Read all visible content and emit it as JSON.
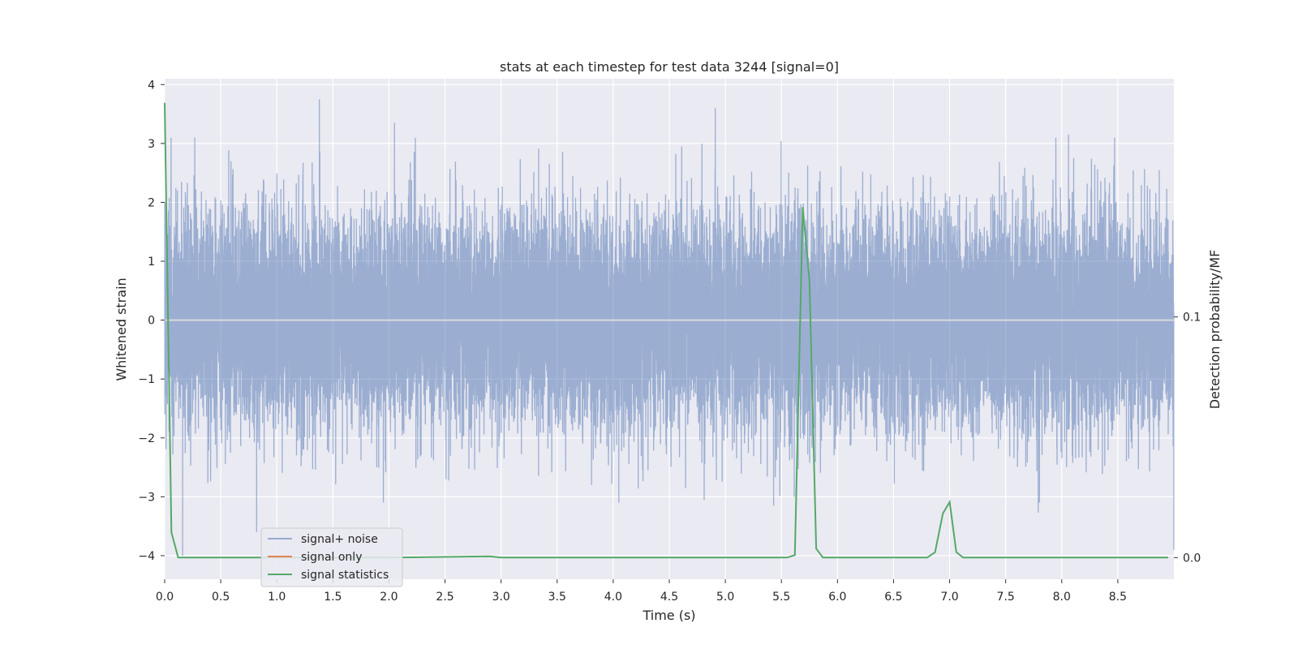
{
  "chart_data": {
    "type": "line",
    "title": "stats at each timestep for test data 3244 [signal=0]",
    "xlabel": "Time (s)",
    "ylabel": "Whitened strain",
    "y2label": "Detection probability/MF",
    "xlim": [
      0.0,
      9.0
    ],
    "ylim": [
      -4.4,
      4.1
    ],
    "y2lim": [
      -0.009,
      0.199
    ],
    "x_ticks": [
      "0.0",
      "0.5",
      "1.0",
      "1.5",
      "2.0",
      "2.5",
      "3.0",
      "3.5",
      "4.0",
      "4.5",
      "5.0",
      "5.5",
      "6.0",
      "6.5",
      "7.0",
      "7.5",
      "8.0",
      "8.5"
    ],
    "y_ticks": [
      "−4",
      "−3",
      "−2",
      "−1",
      "0",
      "1",
      "2",
      "3",
      "4"
    ],
    "y2_ticks": [
      "0.0",
      "0.1"
    ],
    "grid": true,
    "legend_position": "lower-left",
    "colors": {
      "background": "#eaeaf2",
      "grid": "#ffffff",
      "noise": "#4c72b0",
      "signal_only": "#dd8452",
      "statistics": "#55a868"
    },
    "series": [
      {
        "name": "signal+ noise",
        "axis": "left",
        "sample_rate_hz": 2048,
        "duration_s": 9.0,
        "std": 0.88,
        "peaks": [
          [
            1.38,
            3.75
          ],
          [
            4.91,
            3.6
          ],
          [
            2.05,
            3.35
          ],
          [
            8.06,
            3.15
          ],
          [
            0.82,
            -3.6
          ],
          [
            5.43,
            -3.15
          ],
          [
            7.79,
            -3.27
          ],
          [
            4.05,
            -3.1
          ],
          [
            1.95,
            -3.1
          ]
        ]
      },
      {
        "name": "signal only",
        "axis": "left",
        "x": [
          0.0,
          9.0
        ],
        "y": [
          0.0,
          0.0
        ]
      },
      {
        "name": "signal statistics",
        "axis": "right",
        "x": [
          0.0,
          0.06,
          0.12,
          0.2,
          1.0,
          2.0,
          2.9,
          3.0,
          4.0,
          5.0,
          5.55,
          5.62,
          5.69,
          5.75,
          5.81,
          5.87,
          6.0,
          6.5,
          6.8,
          6.87,
          6.94,
          7.0,
          7.06,
          7.12,
          7.5,
          8.0,
          8.5,
          8.95
        ],
        "y": [
          0.189,
          0.0105,
          0.0,
          0.0,
          0.0,
          0.0,
          0.0005,
          0.0,
          0.0,
          0.0,
          0.0,
          0.001,
          0.1456,
          0.1151,
          0.0037,
          0.0,
          0.0,
          0.0,
          0.0,
          0.0022,
          0.0184,
          0.0231,
          0.0023,
          0.0,
          0.0,
          0.0,
          0.0,
          0.0
        ]
      }
    ]
  }
}
